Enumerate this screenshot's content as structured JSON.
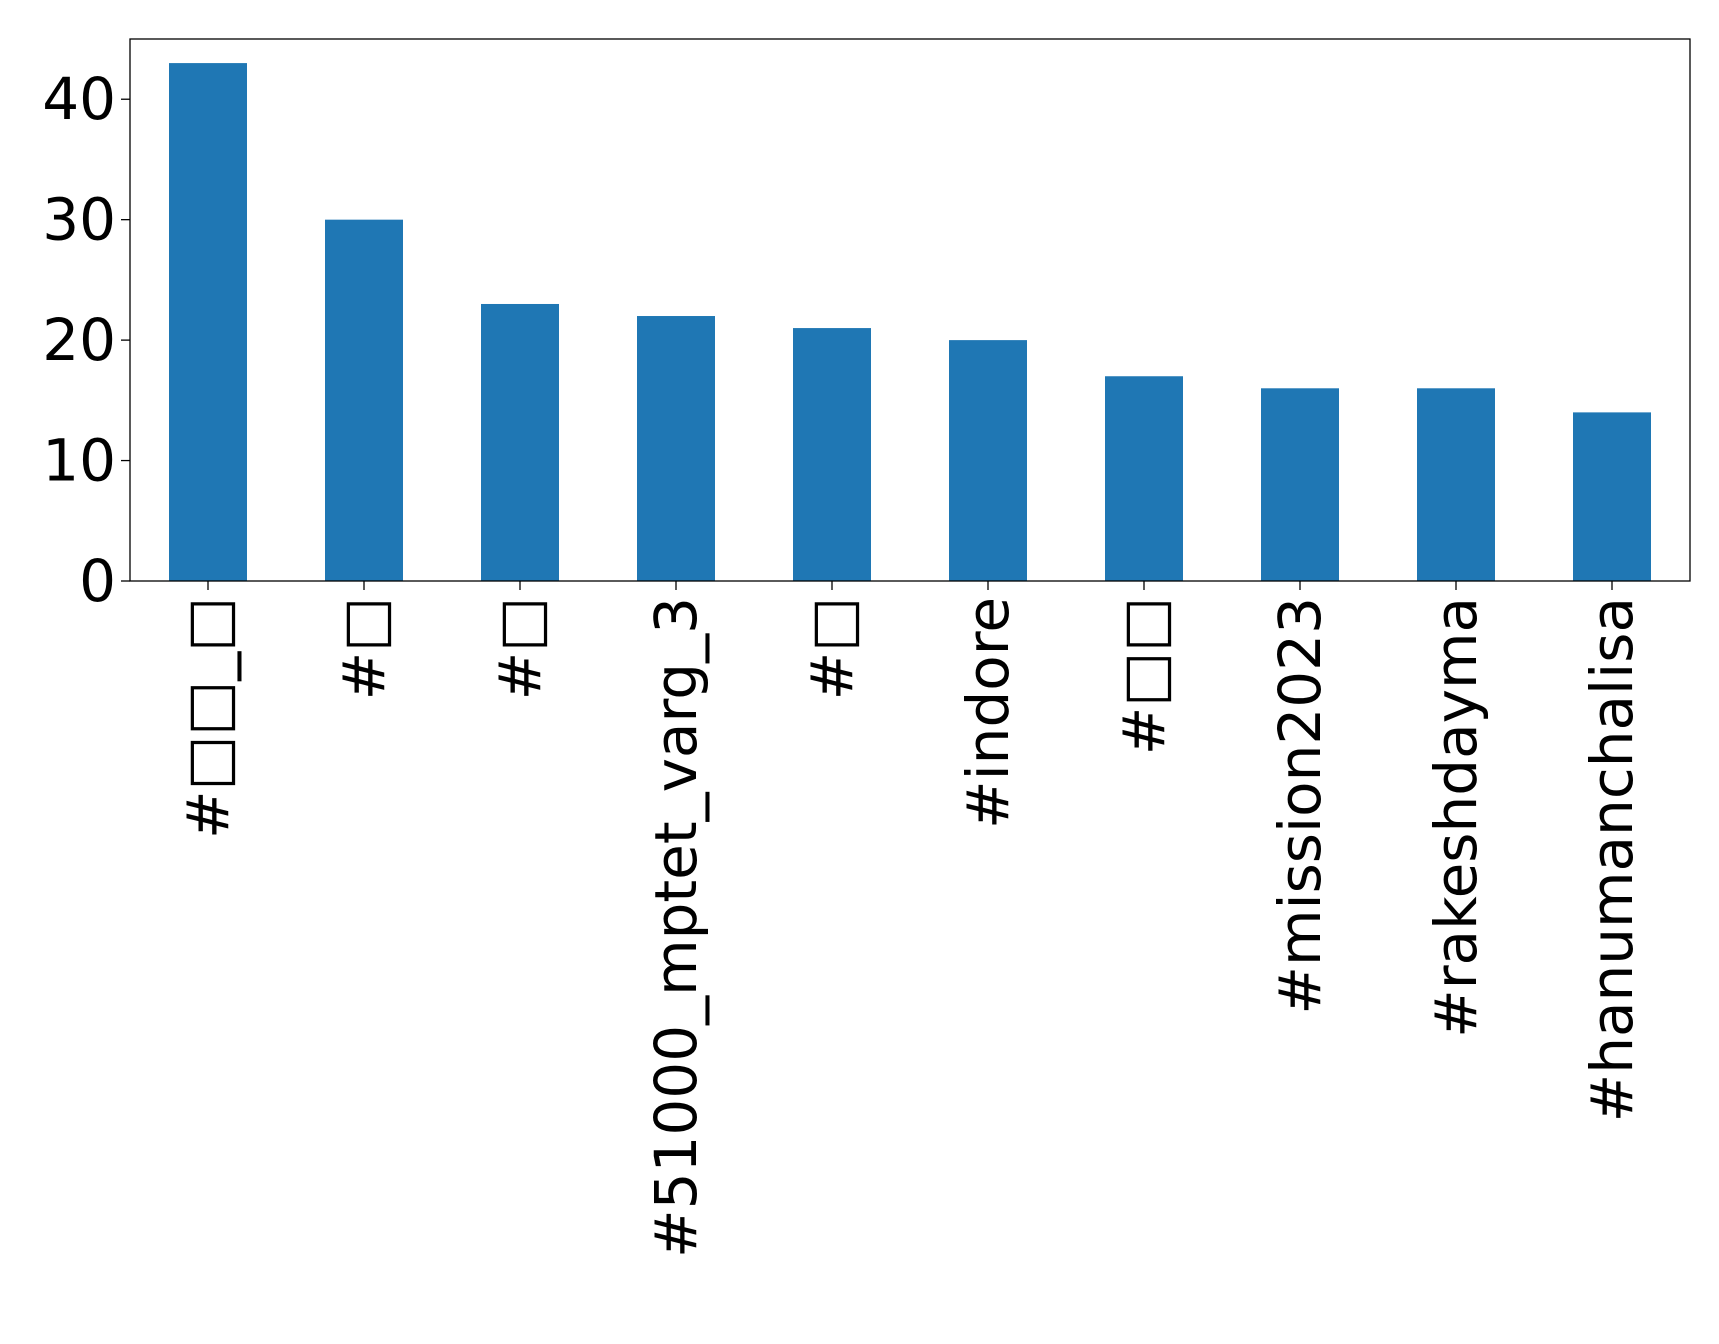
{
  "chart_data": {
    "type": "bar",
    "categories": [
      "#□□_□",
      "#□",
      "#□",
      "#51000_mptet_varg_3",
      "#□",
      "#indore",
      "#□□",
      "#mission2023",
      "#rakeshdayma",
      "#hanumanchalisa"
    ],
    "values": [
      43,
      30,
      23,
      22,
      21,
      20,
      17,
      16,
      16,
      14
    ],
    "ylim": [
      0,
      45
    ],
    "yticks": [
      0,
      10,
      20,
      30,
      40
    ],
    "xlabel": "",
    "ylabel": "",
    "title": "",
    "grid": false,
    "colors": {
      "bar": "#1f77b4",
      "axis": "#000000",
      "text": "#000000"
    }
  }
}
